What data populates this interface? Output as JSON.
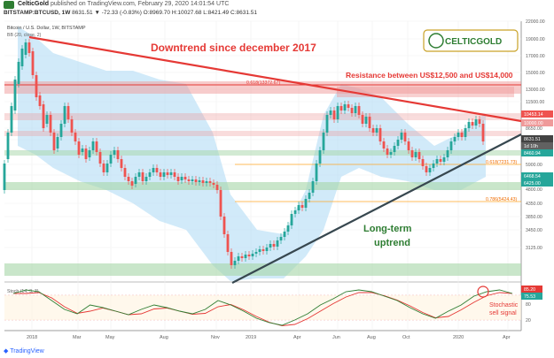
{
  "header": {
    "author": "CelticGold",
    "published": "published on TradingView.com, February 29, 2020 14:01:54 UTC",
    "symbol": "BITSTAMP:BTCUSD, 1W",
    "ohlc": "8631.51 ▼ -72.33 (-0.83%) O:8969.70 H:10027.68 L:8421.49 C:8631.51"
  },
  "footer": {
    "brand": "TradingView"
  },
  "logo_text": "CELTICGOLD",
  "colors": {
    "up": "#26a69a",
    "down": "#ef5350",
    "band": "#b3dcf5",
    "trend_red": "#e53935",
    "trend_green": "#37474f"
  },
  "chart_data": {
    "type": "candlestick",
    "title": "Bitcoin / U.S. Dollar, 1W, BITSTAMP",
    "indicator_label": "BB (20, close, 2)",
    "y_axis_ticks": [
      "22000.00",
      "19000.00",
      "17000.00",
      "15000.00",
      "13000.00",
      "11500.00",
      "10000.00",
      "8650.00",
      "7600.00",
      "6850.00",
      "5900.00",
      "5450.00",
      "4800.00",
      "4350.00",
      "3850.00",
      "3450.00",
      "3125.00"
    ],
    "x_axis_ticks": [
      "2018",
      "Mar",
      "May",
      "Aug",
      "Nov",
      "2019",
      "Apr",
      "Jun",
      "Aug",
      "Oct",
      "2020",
      "Apr"
    ],
    "price_labels": [
      {
        "text": "10453.14",
        "color": "#ef5350"
      },
      {
        "text": "10000.00",
        "color": "#ef9a9a"
      },
      {
        "text": "8631.51",
        "color": "#424242"
      },
      {
        "text": "1d 10h",
        "color": "#616161"
      },
      {
        "text": "8460.94",
        "color": "#26a69a"
      },
      {
        "text": "6468.54",
        "color": "#26a69a"
      },
      {
        "text": "6425.00",
        "color": "#26a69a"
      }
    ],
    "fib_labels": [
      "0.618(13372.67)",
      "0.618(7231.73)",
      "0.786(5424.43)"
    ],
    "annotations": [
      {
        "text": "Downtrend since december 2017",
        "color": "#e53935"
      },
      {
        "text": "Resistance between US$12,500 and US$14,000",
        "color": "#e53935"
      },
      {
        "text": "Long-term",
        "color": "#2e7d32"
      },
      {
        "text": "uptrend",
        "color": "#2e7d32"
      },
      {
        "text": "Stochastic",
        "color": "#e53935"
      },
      {
        "text": "sell signal",
        "color": "#e53935"
      }
    ],
    "stoch": {
      "label": "Stoch (14, 3, 3)",
      "k_label": "85.20",
      "d_label": "75.53",
      "levels": [
        "80",
        "20"
      ]
    }
  }
}
